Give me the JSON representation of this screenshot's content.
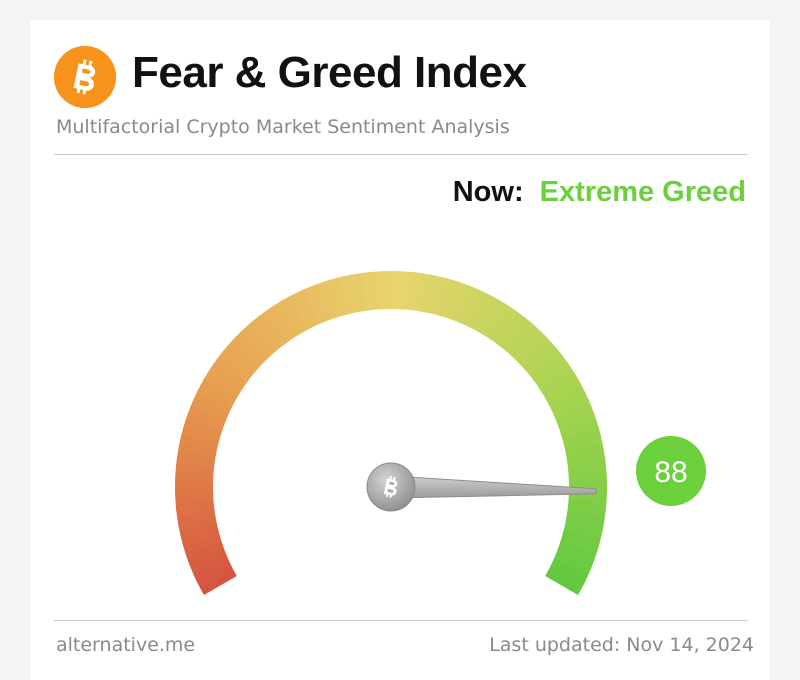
{
  "header": {
    "logo_icon": "bitcoin-icon",
    "title": "Fear & Greed Index",
    "subtitle": "Multifactorial Crypto Market Sentiment Analysis"
  },
  "status": {
    "now_label": "Now:",
    "now_value": "Extreme Greed",
    "now_color": "#6ccf3c"
  },
  "gauge": {
    "value": 88,
    "value_text": "88",
    "min": 0,
    "max": 100,
    "badge_color": "#6ccf3c",
    "needle_hub_icon": "bitcoin-icon"
  },
  "footer": {
    "source": "alternative.me",
    "updated": "Last updated: Nov 14, 2024"
  }
}
